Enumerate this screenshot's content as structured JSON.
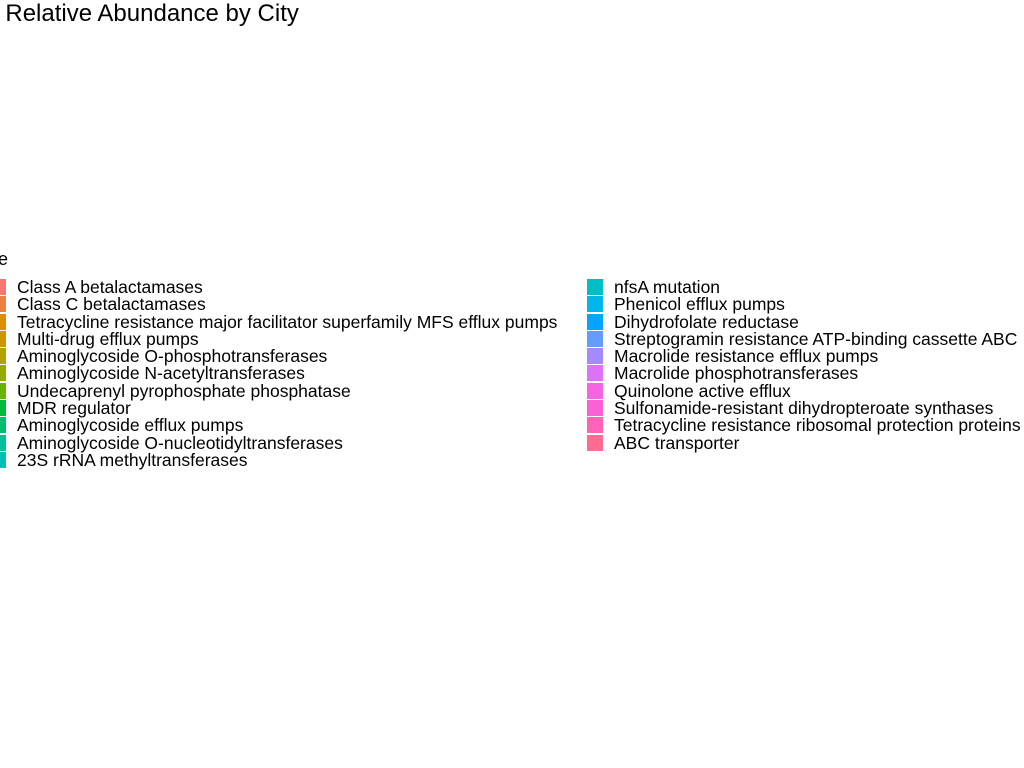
{
  "chart_data": {
    "type": "bar",
    "title": "Mechanism Relative Abundance by City",
    "legend": {
      "title": "Name",
      "columns": 2,
      "entries": [
        {
          "label": "Class A betalactamases",
          "color": "#F8766D"
        },
        {
          "label": "Class C betalactamases",
          "color": "#EE8044"
        },
        {
          "label": "Tetracycline resistance major facilitator superfamily MFS efflux pumps",
          "color": "#DF8C00"
        },
        {
          "label": "Multi-drug efflux pumps",
          "color": "#CB9700"
        },
        {
          "label": "Aminoglycoside O-phosphotransferases",
          "color": "#B2A100"
        },
        {
          "label": "Aminoglycoside N-acetyltransferases",
          "color": "#93AA00"
        },
        {
          "label": "Undecaprenyl pyrophosphate phosphatase",
          "color": "#68B300"
        },
        {
          "label": "MDR regulator",
          "color": "#00BA38"
        },
        {
          "label": "Aminoglycoside efflux pumps",
          "color": "#00BE6C"
        },
        {
          "label": "Aminoglycoside O-nucleotidyltransferases",
          "color": "#00C19A"
        },
        {
          "label": "23S rRNA methyltransferases",
          "color": "#00BFB4"
        },
        {
          "label": "nfsA mutation",
          "color": "#00BFC4"
        },
        {
          "label": "Phenicol efflux pumps",
          "color": "#00B6EB"
        },
        {
          "label": "Dihydrofolate reductase",
          "color": "#06A4FF"
        },
        {
          "label": "Streptogramin resistance ATP-binding cassette ABC",
          "color": "#619CFF"
        },
        {
          "label": "Macrolide resistance efflux pumps",
          "color": "#A58AFF"
        },
        {
          "label": "Macrolide phosphotransferases",
          "color": "#DF70F8"
        },
        {
          "label": "Quinolone active efflux",
          "color": "#F564E3"
        },
        {
          "label": "Sulfonamide-resistant dihydropteroate synthases",
          "color": "#FB61D7"
        },
        {
          "label": "Tetracycline resistance ribosomal protection proteins",
          "color": "#FF63B6"
        },
        {
          "label": "ABC transporter",
          "color": "#FF6C91"
        }
      ]
    }
  }
}
